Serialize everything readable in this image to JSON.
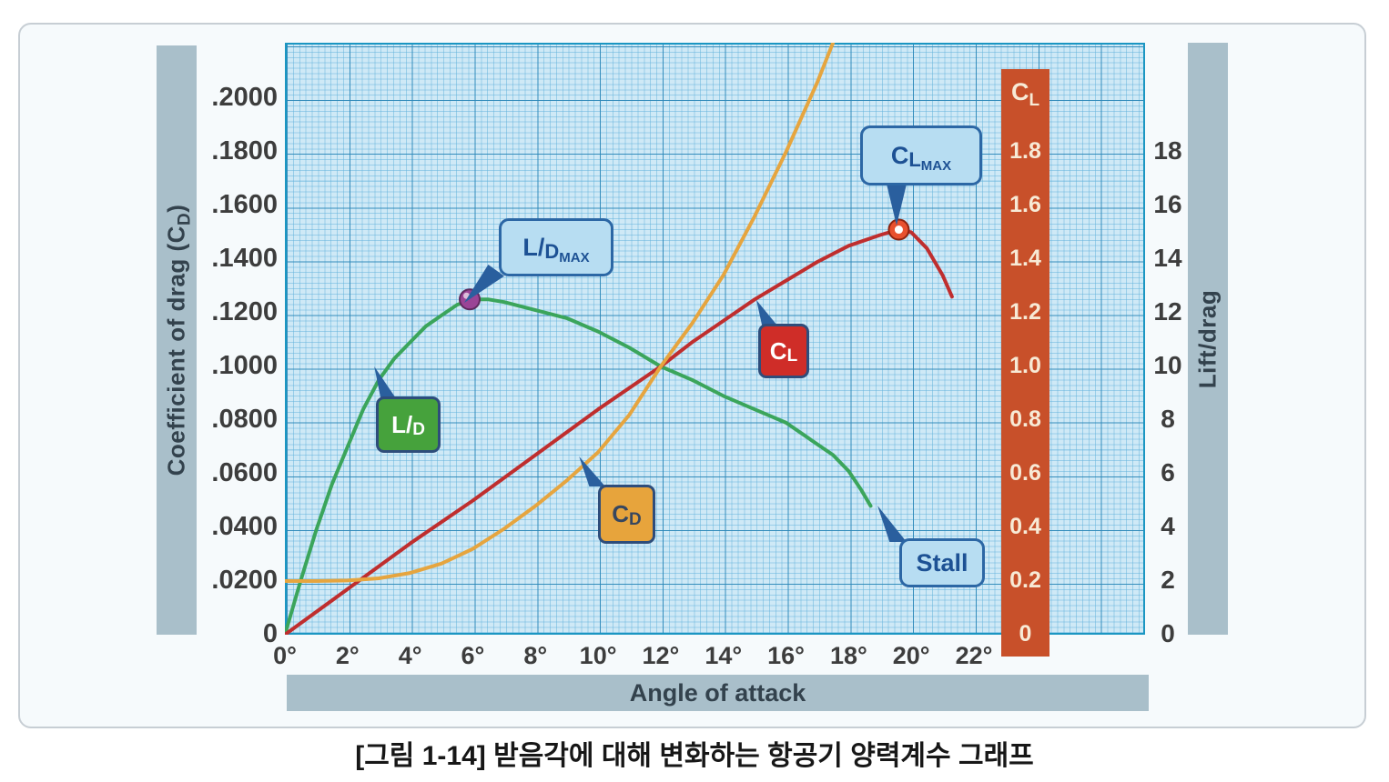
{
  "caption": "[그림 1-14] 받음각에 대해 변화하는 항공기 양력계수 그래프",
  "chart_data": {
    "type": "line",
    "title": "",
    "x_axis": {
      "title": "Angle of attack",
      "unit": "degrees",
      "range": [
        0,
        24
      ],
      "ticks": [
        {
          "label": "0°",
          "value": 0
        },
        {
          "label": "2°",
          "value": 2
        },
        {
          "label": "4°",
          "value": 4
        },
        {
          "label": "6°",
          "value": 6
        },
        {
          "label": "8°",
          "value": 8
        },
        {
          "label": "10°",
          "value": 10
        },
        {
          "label": "12°",
          "value": 12
        },
        {
          "label": "14°",
          "value": 14
        },
        {
          "label": "16°",
          "value": 16
        },
        {
          "label": "18°",
          "value": 18
        },
        {
          "label": "20°",
          "value": 20
        },
        {
          "label": "22°",
          "value": 22
        }
      ]
    },
    "cd_axis": {
      "title_pre": "Coefficient of drag (C",
      "title_sub": "D",
      "title_post": ")",
      "range": [
        0,
        0.22
      ],
      "ticks": [
        {
          "label": ".2000",
          "value": 0.2
        },
        {
          "label": ".1800",
          "value": 0.18
        },
        {
          "label": ".1600",
          "value": 0.16
        },
        {
          "label": ".1400",
          "value": 0.14
        },
        {
          "label": ".1200",
          "value": 0.12
        },
        {
          "label": ".1000",
          "value": 0.1
        },
        {
          "label": ".0800",
          "value": 0.08
        },
        {
          "label": ".0600",
          "value": 0.06
        },
        {
          "label": ".0400",
          "value": 0.04
        },
        {
          "label": ".0200",
          "value": 0.02
        },
        {
          "label": "0",
          "value": 0
        }
      ]
    },
    "cl_axis": {
      "header_main": "C",
      "header_sub": "L",
      "column_color": "#c8502a",
      "range": [
        0,
        1.8
      ],
      "ticks": [
        {
          "label": "1.8",
          "value": 1.8
        },
        {
          "label": "1.6",
          "value": 1.6
        },
        {
          "label": "1.4",
          "value": 1.4
        },
        {
          "label": "1.2",
          "value": 1.2
        },
        {
          "label": "1.0",
          "value": 1.0
        },
        {
          "label": "0.8",
          "value": 0.8
        },
        {
          "label": "0.6",
          "value": 0.6
        },
        {
          "label": "0.4",
          "value": 0.4
        },
        {
          "label": "0.2",
          "value": 0.2
        },
        {
          "label": "0",
          "value": 0
        }
      ]
    },
    "ld_axis": {
      "title": "Lift/drag",
      "range": [
        0,
        18
      ],
      "ticks": [
        {
          "label": "18",
          "value": 18
        },
        {
          "label": "16",
          "value": 16
        },
        {
          "label": "14",
          "value": 14
        },
        {
          "label": "12",
          "value": 12
        },
        {
          "label": "10",
          "value": 10
        },
        {
          "label": "8",
          "value": 8
        },
        {
          "label": "6",
          "value": 6
        },
        {
          "label": "4",
          "value": 4
        },
        {
          "label": "2",
          "value": 2
        },
        {
          "label": "0",
          "value": 0
        }
      ]
    },
    "series": [
      {
        "name": "L/D (lift-to-drag ratio)",
        "color": "#3ba55b",
        "unit_scale": 0.01,
        "points": [
          [
            0,
            0
          ],
          [
            0.5,
            2.0
          ],
          [
            1,
            3.9
          ],
          [
            1.5,
            5.6
          ],
          [
            2,
            7.0
          ],
          [
            2.5,
            8.4
          ],
          [
            3,
            9.5
          ],
          [
            3.5,
            10.3
          ],
          [
            4,
            10.9
          ],
          [
            4.5,
            11.5
          ],
          [
            5,
            11.9
          ],
          [
            5.5,
            12.3
          ],
          [
            6,
            12.5
          ],
          [
            6.5,
            12.5
          ],
          [
            7,
            12.4
          ],
          [
            8,
            12.1
          ],
          [
            9,
            11.8
          ],
          [
            10,
            11.3
          ],
          [
            11,
            10.7
          ],
          [
            12,
            10.0
          ],
          [
            13,
            9.5
          ],
          [
            14,
            8.9
          ],
          [
            15,
            8.4
          ],
          [
            16,
            7.9
          ],
          [
            17,
            7.1
          ],
          [
            17.5,
            6.7
          ],
          [
            18,
            6.1
          ],
          [
            18.4,
            5.4
          ],
          [
            18.7,
            4.8
          ]
        ]
      },
      {
        "name": "CL (coefficient of lift)",
        "color": "#bf2e2e",
        "unit_scale": 0.1,
        "points": [
          [
            0,
            0
          ],
          [
            2,
            0.17
          ],
          [
            4,
            0.34
          ],
          [
            6,
            0.5
          ],
          [
            8,
            0.67
          ],
          [
            10,
            0.84
          ],
          [
            12,
            1.0
          ],
          [
            13,
            1.09
          ],
          [
            14,
            1.17
          ],
          [
            15,
            1.25
          ],
          [
            16,
            1.32
          ],
          [
            17,
            1.39
          ],
          [
            18,
            1.45
          ],
          [
            19,
            1.49
          ],
          [
            19.6,
            1.51
          ],
          [
            20,
            1.5
          ],
          [
            20.5,
            1.44
          ],
          [
            21,
            1.34
          ],
          [
            21.3,
            1.26
          ]
        ]
      },
      {
        "name": "CD (coefficient of drag)",
        "color": "#e6a53f",
        "unit_scale": 1,
        "points": [
          [
            0,
            0.02
          ],
          [
            1,
            0.02
          ],
          [
            2,
            0.0202
          ],
          [
            3,
            0.021
          ],
          [
            4,
            0.023
          ],
          [
            5,
            0.0265
          ],
          [
            6,
            0.032
          ],
          [
            7,
            0.0395
          ],
          [
            8,
            0.048
          ],
          [
            9,
            0.0575
          ],
          [
            10,
            0.068
          ],
          [
            11,
            0.082
          ],
          [
            12,
            0.1
          ],
          [
            13,
            0.116
          ],
          [
            14,
            0.134
          ],
          [
            15,
            0.156
          ],
          [
            16,
            0.18
          ],
          [
            17,
            0.206
          ],
          [
            17.5,
            0.2207
          ]
        ]
      }
    ],
    "markers": [
      {
        "name": "L/D max point",
        "x": 5.9,
        "value": 12.5,
        "unit_scale": 0.01,
        "fill": "#9a4496",
        "stroke": "#5e2a5e",
        "inner": ""
      },
      {
        "name": "CL max point",
        "x": 19.6,
        "value": 1.51,
        "unit_scale": 0.1,
        "fill": "#e8512e",
        "stroke": "#8e2410",
        "inner": "#ffffff"
      }
    ],
    "grid": true,
    "legend_position": "inline-callouts"
  },
  "callouts": {
    "ld_max": {
      "part1": "L/",
      "part2": "D",
      "part3": "MAX"
    },
    "cl_max": {
      "part1": "C",
      "part2": "L",
      "part3": "MAX"
    },
    "stall": {
      "label": "Stall"
    },
    "cl_badge": {
      "part1": "C",
      "part2": "L",
      "bg": "#cf2d28"
    },
    "cd_badge": {
      "part1": "C",
      "part2": "D",
      "bg": "#e7a43c"
    },
    "ld_badge": {
      "part1": "L/",
      "part2": "D",
      "bg": "#46a23c"
    }
  }
}
